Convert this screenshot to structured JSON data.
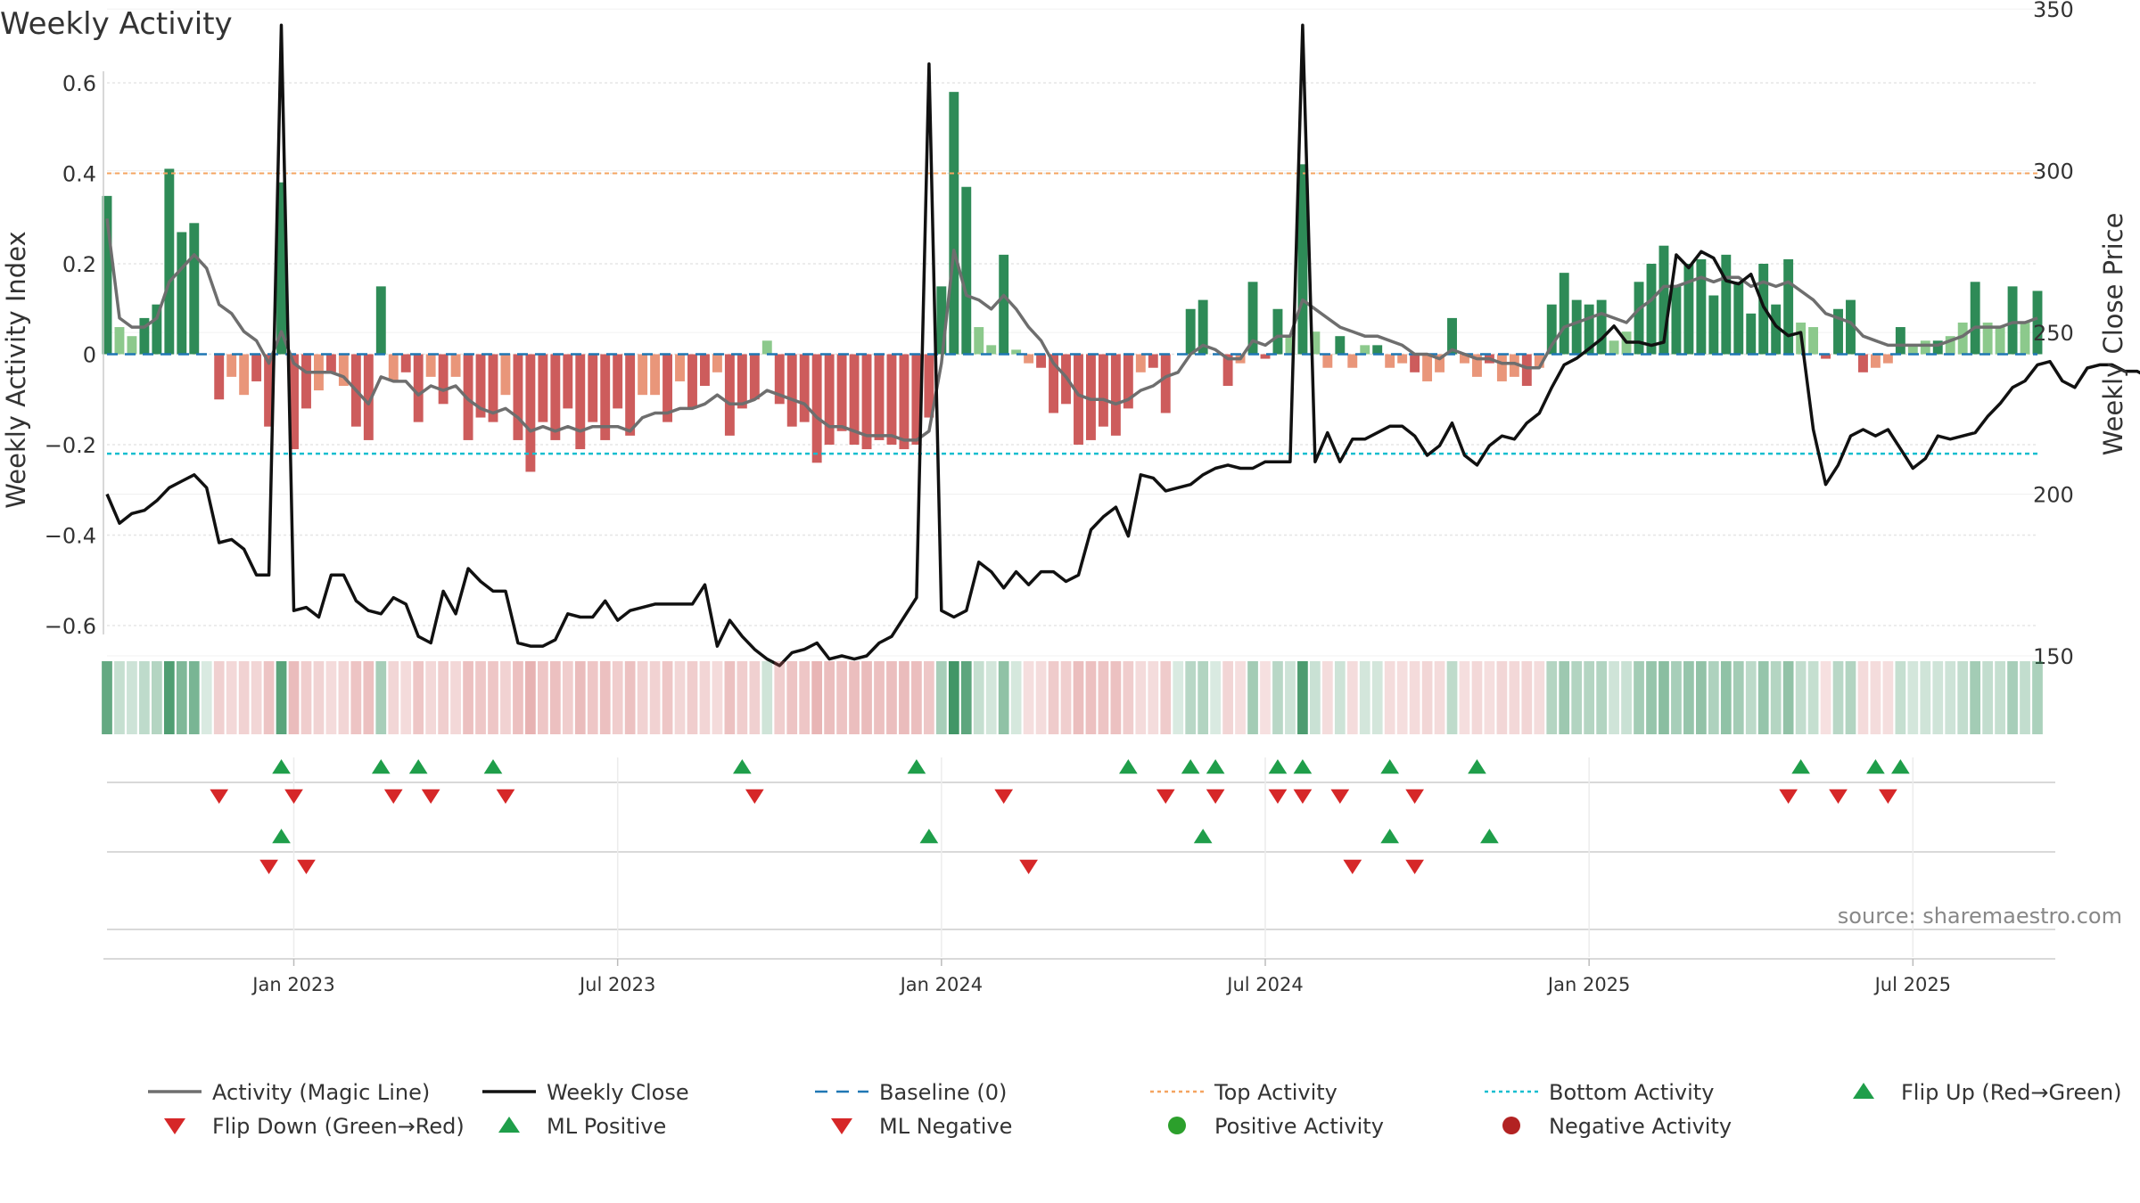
{
  "chart_data": {
    "type": "bar",
    "title": "Weekly Activity",
    "ylabel_left": "Weekly Activity Index",
    "ylabel_right": "Weekly Close Price",
    "ylim_left": [
      -0.6,
      0.6
    ],
    "ylim_right": [
      140,
      350
    ],
    "y_ticks_left": [
      "0.6",
      "0.4",
      "0.2",
      "0",
      "−0.2",
      "−0.4",
      "−0.6"
    ],
    "y_ticks_left_values": [
      0.6,
      0.4,
      0.2,
      0,
      -0.2,
      -0.4,
      -0.6
    ],
    "y_ticks_right": [
      "350",
      "300",
      "250",
      "200",
      "150"
    ],
    "y_ticks_right_values": [
      350,
      300,
      250,
      200,
      150
    ],
    "x_ticks": [
      "Jan 2023",
      "Jul 2023",
      "Jan 2024",
      "Jul 2024",
      "Jan 2025",
      "Jul 2025"
    ],
    "x_ticks_week_index": [
      15,
      41,
      67,
      93,
      119,
      145
    ],
    "top_activity": 0.4,
    "bottom_activity": -0.22,
    "baseline": 0,
    "source": "source: sharemaestro.com",
    "activity": [
      0.35,
      0.06,
      0.04,
      0.08,
      0.11,
      0.41,
      0.27,
      0.29,
      0.0,
      -0.1,
      -0.05,
      -0.09,
      -0.06,
      -0.16,
      0.38,
      -0.21,
      -0.12,
      -0.08,
      -0.04,
      -0.07,
      -0.16,
      -0.19,
      0.15,
      -0.06,
      -0.04,
      -0.15,
      -0.05,
      -0.11,
      -0.05,
      -0.19,
      -0.14,
      -0.15,
      -0.09,
      -0.19,
      -0.26,
      -0.15,
      -0.19,
      -0.12,
      -0.21,
      -0.15,
      -0.19,
      -0.12,
      -0.18,
      -0.09,
      -0.09,
      -0.15,
      -0.06,
      -0.12,
      -0.07,
      -0.04,
      -0.18,
      -0.12,
      -0.1,
      0.03,
      -0.11,
      -0.16,
      -0.15,
      -0.24,
      -0.2,
      -0.17,
      -0.2,
      -0.21,
      -0.19,
      -0.2,
      -0.21,
      -0.2,
      -0.14,
      0.15,
      0.58,
      0.37,
      0.06,
      0.02,
      0.22,
      0.01,
      -0.02,
      -0.03,
      -0.13,
      -0.11,
      -0.2,
      -0.19,
      -0.16,
      -0.18,
      -0.12,
      -0.04,
      -0.03,
      -0.13,
      0.0,
      0.1,
      0.12,
      0.0,
      -0.07,
      -0.02,
      0.16,
      -0.01,
      0.1,
      0.04,
      0.42,
      0.05,
      -0.03,
      0.04,
      -0.03,
      0.02,
      0.02,
      -0.03,
      -0.02,
      -0.04,
      -0.06,
      -0.04,
      0.08,
      -0.02,
      -0.05,
      -0.02,
      -0.06,
      -0.05,
      -0.07,
      -0.03,
      0.11,
      0.18,
      0.12,
      0.11,
      0.12,
      0.03,
      0.05,
      0.16,
      0.2,
      0.24,
      0.15,
      0.2,
      0.21,
      0.13,
      0.22,
      0.16,
      0.09,
      0.2,
      0.11,
      0.21,
      0.07,
      0.06,
      -0.01,
      0.1,
      0.12,
      -0.04,
      -0.03,
      -0.02,
      0.06,
      0.02,
      0.03,
      0.03,
      0.04,
      0.07,
      0.16,
      0.07,
      0.06,
      0.15,
      0.07,
      0.14
    ],
    "magic_line": [
      0.3,
      0.08,
      0.06,
      0.06,
      0.08,
      0.16,
      0.19,
      0.22,
      0.19,
      0.11,
      0.09,
      0.05,
      0.03,
      -0.02,
      0.05,
      -0.02,
      -0.04,
      -0.04,
      -0.04,
      -0.05,
      -0.08,
      -0.11,
      -0.05,
      -0.06,
      -0.06,
      -0.09,
      -0.07,
      -0.08,
      -0.07,
      -0.1,
      -0.12,
      -0.13,
      -0.12,
      -0.14,
      -0.17,
      -0.16,
      -0.17,
      -0.16,
      -0.17,
      -0.16,
      -0.16,
      -0.16,
      -0.17,
      -0.14,
      -0.13,
      -0.13,
      -0.12,
      -0.12,
      -0.11,
      -0.09,
      -0.11,
      -0.11,
      -0.1,
      -0.08,
      -0.09,
      -0.1,
      -0.11,
      -0.14,
      -0.16,
      -0.16,
      -0.17,
      -0.18,
      -0.18,
      -0.18,
      -0.19,
      -0.19,
      -0.17,
      -0.02,
      0.23,
      0.13,
      0.12,
      0.1,
      0.13,
      0.1,
      0.06,
      0.03,
      -0.02,
      -0.05,
      -0.09,
      -0.1,
      -0.1,
      -0.11,
      -0.1,
      -0.08,
      -0.07,
      -0.05,
      -0.04,
      0.0,
      0.02,
      0.01,
      -0.01,
      -0.01,
      0.03,
      0.02,
      0.04,
      0.04,
      0.12,
      0.1,
      0.08,
      0.06,
      0.05,
      0.04,
      0.04,
      0.03,
      0.02,
      0.0,
      0.0,
      -0.01,
      0.01,
      0.0,
      -0.01,
      -0.01,
      -0.02,
      -0.02,
      -0.03,
      -0.03,
      0.02,
      0.06,
      0.07,
      0.08,
      0.09,
      0.08,
      0.07,
      0.1,
      0.12,
      0.15,
      0.15,
      0.16,
      0.17,
      0.16,
      0.17,
      0.17,
      0.15,
      0.16,
      0.15,
      0.16,
      0.14,
      0.12,
      0.09,
      0.08,
      0.07,
      0.04,
      0.03,
      0.02,
      0.02,
      0.02,
      0.02,
      0.02,
      0.03,
      0.04,
      0.06,
      0.06,
      0.06,
      0.07,
      0.07,
      0.08
    ],
    "weekly_close": [
      200,
      191,
      194,
      195,
      198,
      202,
      204,
      206,
      202,
      185,
      186,
      183,
      175,
      175,
      345,
      164,
      165,
      162,
      175,
      175,
      167,
      164,
      163,
      168,
      166,
      156,
      154,
      170,
      163,
      177,
      173,
      170,
      170,
      154,
      153,
      153,
      155,
      163,
      162,
      162,
      167,
      161,
      164,
      165,
      166,
      166,
      166,
      166,
      172,
      153,
      161,
      156,
      152,
      149,
      147,
      151,
      152,
      154,
      149,
      150,
      149,
      150,
      154,
      156,
      162,
      168,
      333,
      164,
      162,
      164,
      179,
      176,
      171,
      176,
      172,
      176,
      176,
      173,
      175,
      189,
      193,
      196,
      187,
      206,
      205,
      201,
      202,
      203,
      206,
      208,
      209,
      208,
      208,
      210,
      210,
      210,
      345,
      210,
      219,
      210,
      217,
      217,
      219,
      221,
      221,
      218,
      212,
      215,
      222,
      212,
      209,
      215,
      218,
      217,
      222,
      225,
      233,
      240,
      242,
      245,
      248,
      252,
      247,
      247,
      246,
      247,
      274,
      270,
      275,
      273,
      266,
      265,
      268,
      258,
      252,
      249,
      250,
      220,
      203,
      209,
      218,
      220,
      218,
      220,
      214,
      208,
      211,
      218,
      217,
      218,
      219,
      224,
      228,
      233,
      235,
      240,
      241,
      235,
      233,
      239,
      240,
      240,
      238,
      238,
      236
    ],
    "flip_up": [
      14,
      22,
      25,
      31,
      51,
      65,
      82,
      87,
      89,
      94,
      96,
      103,
      110,
      136,
      142,
      144
    ],
    "flip_down": [
      9,
      15,
      23,
      26,
      32,
      52,
      72,
      85,
      89,
      94,
      96,
      99,
      105,
      135,
      139,
      143
    ],
    "ml_positive": [
      14,
      66,
      88,
      103,
      111
    ],
    "ml_negative": [
      13,
      16,
      74,
      100,
      105
    ]
  },
  "legend": [
    {
      "label": "Activity (Magic Line)",
      "icon": "line-gray"
    },
    {
      "label": "Weekly Close",
      "icon": "line-black"
    },
    {
      "label": "Baseline (0)",
      "icon": "dash-blue"
    },
    {
      "label": "Top Activity",
      "icon": "dot-orange"
    },
    {
      "label": "Bottom Activity",
      "icon": "dot-cyan"
    },
    {
      "label": "Flip Up (Red→Green)",
      "icon": "triangle-up-green"
    },
    {
      "label": "Flip Down (Green→Red)",
      "icon": "triangle-down-red"
    },
    {
      "label": "ML Positive",
      "icon": "triangle-up-green"
    },
    {
      "label": "ML Negative",
      "icon": "triangle-down-red"
    },
    {
      "label": "Positive Activity",
      "icon": "circle-green"
    },
    {
      "label": "Negative Activity",
      "icon": "circle-darkred"
    }
  ],
  "colors": {
    "pos_dark": "#2e8b57",
    "pos_light": "#8cc98c",
    "neg_dark": "#cd5c5c",
    "neg_light": "#e9967a",
    "magic_line": "#6e6e6e",
    "close": "#111111",
    "baseline": "#1f77b4",
    "top": "#f4a460",
    "bottom": "#17becf",
    "marker_green": "#1f9e4a",
    "marker_red": "#d62728",
    "circle_green": "#2ca02c",
    "circle_darkred": "#b22222"
  }
}
